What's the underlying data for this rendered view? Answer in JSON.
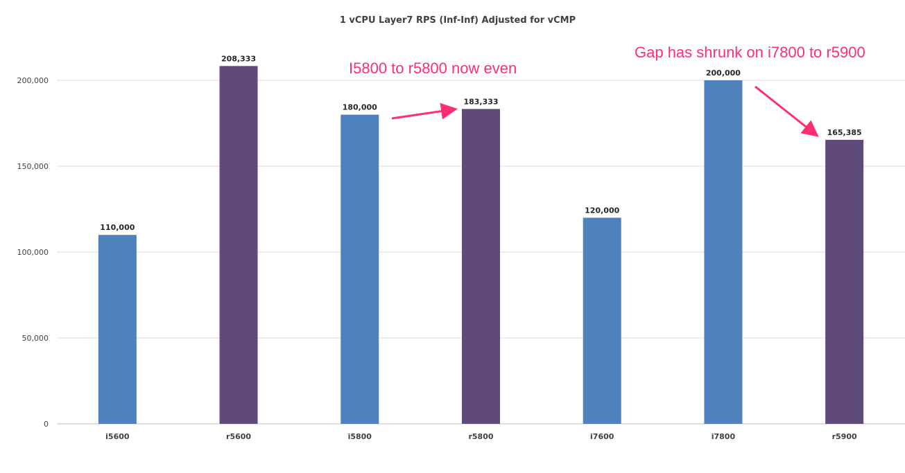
{
  "chart_data": {
    "type": "bar",
    "title": "1 vCPU Layer7 RPS (Inf-Inf) Adjusted for vCMP",
    "xlabel": "",
    "ylabel": "",
    "categories": [
      "i5600",
      "r5600",
      "i5800",
      "r5800",
      "i7600",
      "i7800",
      "r5900"
    ],
    "values": [
      110000,
      208333,
      180000,
      183333,
      120000,
      200000,
      165385
    ],
    "value_labels": [
      "110,000",
      "208,333",
      "180,000",
      "183,333",
      "120,000",
      "200,000",
      "165,385"
    ],
    "bar_colors": [
      "#4f81bd",
      "#604a7b",
      "#4f81bd",
      "#604a7b",
      "#4f81bd",
      "#4f81bd",
      "#604a7b"
    ],
    "ylim": [
      0,
      225000
    ],
    "yticks": [
      0,
      50000,
      100000,
      150000,
      200000
    ],
    "ytick_labels": [
      "0",
      "50,000",
      "100,000",
      "150,000",
      "200,000"
    ],
    "grid": true,
    "legend": "none",
    "annotations": [
      {
        "text": "I5800 to r5800 now even",
        "color": "#ff2e6e",
        "arrow_from_category": "i5800",
        "arrow_to_category": "r5800"
      },
      {
        "text": "Gap has shrunk on i7800 to r5900",
        "color": "#ff2e6e",
        "arrow_from_category": "i7800",
        "arrow_to_category": "r5900"
      }
    ]
  }
}
